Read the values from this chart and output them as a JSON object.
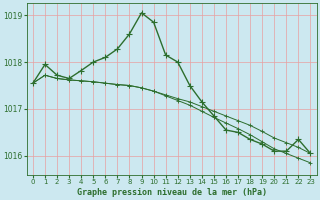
{
  "title": "Graphe pression niveau de la mer (hPa)",
  "background_color": "#cce8f0",
  "grid_color_major": "#e8a0a0",
  "grid_color_minor": "#d4d4d4",
  "line_color": "#2d6e2d",
  "xlim": [
    -0.5,
    23.5
  ],
  "ylim": [
    1015.6,
    1019.25
  ],
  "yticks": [
    1016,
    1017,
    1018,
    1019
  ],
  "xticks": [
    0,
    1,
    2,
    3,
    4,
    5,
    6,
    7,
    8,
    9,
    10,
    11,
    12,
    13,
    14,
    15,
    16,
    17,
    18,
    19,
    20,
    21,
    22,
    23
  ],
  "series1": [
    1017.55,
    1017.95,
    1017.72,
    1017.65,
    1017.82,
    1018.0,
    1018.1,
    1018.28,
    1018.6,
    1019.05,
    1018.85,
    1018.15,
    1018.0,
    1017.5,
    1017.15,
    1016.85,
    1016.55,
    1016.5,
    1016.35,
    1016.25,
    1016.1,
    1016.1,
    1016.35,
    1016.05
  ],
  "series2": [
    1017.55,
    1017.72,
    1017.65,
    1017.62,
    1017.6,
    1017.58,
    1017.55,
    1017.52,
    1017.5,
    1017.45,
    1017.38,
    1017.3,
    1017.22,
    1017.15,
    1017.05,
    1016.95,
    1016.85,
    1016.75,
    1016.65,
    1016.52,
    1016.38,
    1016.28,
    1016.18,
    1016.05
  ],
  "series3": [
    1017.55,
    1017.72,
    1017.65,
    1017.62,
    1017.6,
    1017.58,
    1017.55,
    1017.52,
    1017.5,
    1017.45,
    1017.38,
    1017.28,
    1017.18,
    1017.08,
    1016.95,
    1016.82,
    1016.7,
    1016.58,
    1016.45,
    1016.3,
    1016.15,
    1016.05,
    1015.95,
    1015.85
  ],
  "marker_size": 2.5,
  "linewidth1": 1.0,
  "linewidth2": 0.7
}
